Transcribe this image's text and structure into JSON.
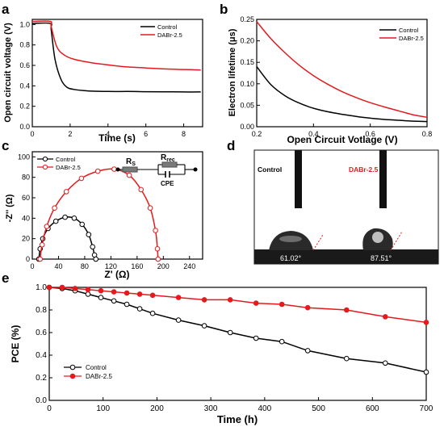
{
  "colors": {
    "control": "#000000",
    "dabr": "#e41a1c",
    "photo_bg": "#ffffff",
    "substrate": "#1a1a1a"
  },
  "panels": {
    "a": {
      "letter": "a",
      "xlabel": "Time (s)",
      "ylabel": "Open circuit voltage (V)",
      "legend": [
        "Control",
        "DABr-2.5"
      ]
    },
    "b": {
      "letter": "b",
      "xlabel": "Open Circuit Votlage (V)",
      "ylabel": "Electron lifetime (μs)",
      "legend": [
        "Control",
        "DABr-2.5"
      ]
    },
    "c": {
      "letter": "c",
      "xlabel": "Z' (Ω)",
      "ylabel": "-Z'' (Ω)",
      "legend": [
        "Control",
        "DABr-2.5"
      ],
      "circuit": {
        "rs": "R",
        "rs_sub": "S",
        "rrec": "R",
        "rrec_sub": "rec",
        "cpe": "CPE"
      }
    },
    "d": {
      "letter": "d",
      "label_control": "Control",
      "label_dabr": "DABr-2.5",
      "angle_control": "61.02°",
      "angle_dabr": "87.51°"
    },
    "e": {
      "letter": "e",
      "xlabel": "Time (h)",
      "ylabel": "PCE (%)",
      "legend": [
        "Control",
        "DABr-2.5"
      ]
    }
  },
  "chart_data": [
    {
      "panel": "a",
      "type": "line",
      "xlim": [
        0,
        9
      ],
      "ylim": [
        0,
        1.05
      ],
      "xticks": [
        0,
        2,
        4,
        6,
        8
      ],
      "yticks": [
        0.0,
        0.2,
        0.4,
        0.6,
        0.8,
        1.0
      ],
      "series": [
        {
          "name": "Control",
          "x": [
            0,
            0.95,
            1.0,
            1.2,
            1.5,
            1.8,
            2.2,
            3,
            4,
            5,
            6,
            7,
            8,
            8.9
          ],
          "y": [
            1.01,
            1.01,
            0.95,
            0.66,
            0.47,
            0.39,
            0.365,
            0.35,
            0.345,
            0.345,
            0.343,
            0.342,
            0.34,
            0.34
          ]
        },
        {
          "name": "DABr-2.5",
          "x": [
            0,
            0.95,
            1.0,
            1.3,
            1.7,
            2.2,
            3,
            4,
            5,
            6,
            7,
            8,
            8.9
          ],
          "y": [
            1.03,
            1.03,
            0.98,
            0.78,
            0.7,
            0.66,
            0.63,
            0.605,
            0.585,
            0.575,
            0.565,
            0.56,
            0.555
          ]
        }
      ]
    },
    {
      "panel": "b",
      "type": "line",
      "xlim": [
        0.2,
        0.8
      ],
      "ylim": [
        0,
        0.25
      ],
      "xticks": [
        0.2,
        0.4,
        0.6,
        0.8
      ],
      "yticks": [
        0.0,
        0.05,
        0.1,
        0.15,
        0.2,
        0.25
      ],
      "series": [
        {
          "name": "Control",
          "x": [
            0.2,
            0.25,
            0.3,
            0.35,
            0.4,
            0.45,
            0.5,
            0.55,
            0.6,
            0.65,
            0.7,
            0.75,
            0.8
          ],
          "y": [
            0.14,
            0.098,
            0.072,
            0.055,
            0.043,
            0.035,
            0.029,
            0.024,
            0.02,
            0.017,
            0.015,
            0.013,
            0.012
          ]
        },
        {
          "name": "DABr-2.5",
          "x": [
            0.2,
            0.25,
            0.3,
            0.35,
            0.4,
            0.45,
            0.5,
            0.55,
            0.6,
            0.65,
            0.7,
            0.75,
            0.8
          ],
          "y": [
            0.245,
            0.205,
            0.172,
            0.143,
            0.119,
            0.099,
            0.082,
            0.068,
            0.056,
            0.046,
            0.037,
            0.028,
            0.022
          ]
        }
      ]
    },
    {
      "panel": "c",
      "type": "scatter",
      "xlim": [
        0,
        260
      ],
      "ylim": [
        0,
        105
      ],
      "xticks": [
        0,
        40,
        80,
        120,
        160,
        200,
        240
      ],
      "yticks": [
        0,
        20,
        40,
        60,
        80,
        100
      ],
      "series": [
        {
          "name": "Control",
          "x": [
            10,
            12,
            16,
            24,
            36,
            50,
            64,
            76,
            86,
            92,
            95,
            97
          ],
          "y": [
            0,
            10,
            20,
            30,
            37,
            41,
            40,
            34,
            24,
            12,
            4,
            0
          ]
        },
        {
          "name": "DABr-2.5",
          "x": [
            12,
            15,
            22,
            34,
            52,
            75,
            100,
            125,
            148,
            166,
            180,
            188,
            191,
            192
          ],
          "y": [
            0,
            14,
            32,
            50,
            66,
            79,
            86,
            88,
            82,
            68,
            50,
            28,
            10,
            0
          ]
        }
      ]
    },
    {
      "panel": "e",
      "type": "line",
      "xlim": [
        0,
        700
      ],
      "ylim": [
        0,
        1.0
      ],
      "xticks": [
        0,
        100,
        200,
        300,
        400,
        500,
        600,
        700
      ],
      "yticks": [
        0.0,
        0.2,
        0.4,
        0.6,
        0.8,
        1.0
      ],
      "series": [
        {
          "name": "Control",
          "x": [
            0,
            24,
            48,
            72,
            96,
            120,
            144,
            168,
            192,
            240,
            288,
            336,
            384,
            432,
            480,
            552,
            624,
            700
          ],
          "y": [
            1.0,
            0.99,
            0.97,
            0.94,
            0.91,
            0.88,
            0.85,
            0.81,
            0.77,
            0.71,
            0.66,
            0.6,
            0.55,
            0.52,
            0.44,
            0.37,
            0.33,
            0.25
          ]
        },
        {
          "name": "DABr-2.5",
          "x": [
            0,
            24,
            48,
            72,
            96,
            120,
            144,
            168,
            192,
            240,
            288,
            336,
            384,
            432,
            480,
            552,
            624,
            700
          ],
          "y": [
            1.0,
            1.0,
            0.99,
            0.98,
            0.97,
            0.96,
            0.95,
            0.94,
            0.93,
            0.91,
            0.89,
            0.89,
            0.86,
            0.85,
            0.82,
            0.8,
            0.74,
            0.69
          ]
        }
      ]
    }
  ]
}
